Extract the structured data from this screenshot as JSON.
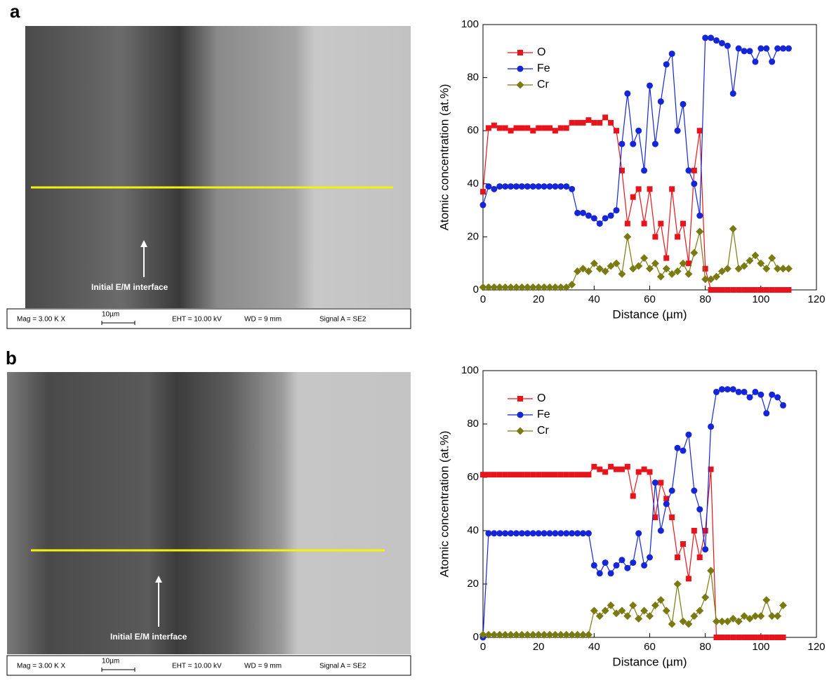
{
  "panels": [
    {
      "label": "a",
      "interface_label": "Initial E/M interface",
      "info": [
        "Mag =  3.00 K X",
        "10µm",
        "EHT = 10.00 kV",
        "WD =    9 mm",
        "Signal A = SE2"
      ]
    },
    {
      "label": "b",
      "interface_label": "Initial E/M interface",
      "info": [
        "Mag =  3.00 K X",
        "10µm",
        "EHT = 10.00 kV",
        "WD =    9 mm",
        "Signal A = SE2"
      ]
    }
  ],
  "chart_data": [
    {
      "type": "line",
      "x_label": "Distance (µm)",
      "y_label": "Atomic concentration (at.%)",
      "xlim": [
        0,
        120
      ],
      "ylim": [
        0,
        100
      ],
      "xticks": [
        0,
        20,
        40,
        60,
        80,
        100,
        120
      ],
      "yticks": [
        0,
        20,
        40,
        60,
        80,
        100
      ],
      "legend": "upper left",
      "x": [
        0,
        2,
        4,
        6,
        8,
        10,
        12,
        14,
        16,
        18,
        20,
        22,
        24,
        26,
        28,
        30,
        32,
        34,
        36,
        38,
        40,
        42,
        44,
        46,
        48,
        50,
        52,
        54,
        56,
        58,
        60,
        62,
        64,
        66,
        68,
        70,
        72,
        74,
        76,
        78,
        80,
        82,
        84,
        86,
        88,
        90,
        92,
        94,
        96,
        98,
        100,
        102,
        104,
        106,
        108,
        110
      ],
      "series": [
        {
          "name": "O",
          "color": "#e8141c",
          "marker": "square",
          "values": [
            37,
            61,
            62,
            61,
            61,
            60,
            61,
            61,
            61,
            60,
            61,
            61,
            61,
            60,
            61,
            61,
            63,
            63,
            63,
            64,
            63,
            63,
            65,
            63,
            60,
            45,
            25,
            35,
            38,
            25,
            38,
            20,
            25,
            12,
            38,
            20,
            25,
            10,
            45,
            60,
            8,
            0,
            0,
            0,
            0,
            0,
            0,
            0,
            0,
            0,
            0,
            0,
            0,
            0,
            0,
            0
          ]
        },
        {
          "name": "Fe",
          "color": "#1426d8",
          "marker": "circle",
          "values": [
            32,
            39,
            38,
            39,
            39,
            39,
            39,
            39,
            39,
            39,
            39,
            39,
            39,
            39,
            39,
            39,
            38,
            29,
            29,
            28,
            27,
            25,
            27,
            28,
            30,
            55,
            74,
            55,
            60,
            45,
            77,
            55,
            71,
            85,
            89,
            60,
            70,
            45,
            40,
            28,
            95,
            95,
            94,
            93,
            92,
            74,
            91,
            90,
            90,
            86,
            91,
            91,
            86,
            91,
            91,
            91
          ]
        },
        {
          "name": "Cr",
          "color": "#7a7a12",
          "marker": "diamond",
          "values": [
            1,
            1,
            1,
            1,
            1,
            1,
            1,
            1,
            1,
            1,
            1,
            1,
            1,
            1,
            1,
            1,
            2,
            7,
            8,
            7,
            10,
            8,
            7,
            9,
            10,
            6,
            20,
            8,
            9,
            12,
            8,
            10,
            5,
            8,
            6,
            7,
            10,
            6,
            14,
            22,
            4,
            4,
            5,
            7,
            8,
            23,
            8,
            9,
            11,
            13,
            10,
            8,
            12,
            8,
            8,
            8
          ]
        }
      ]
    },
    {
      "type": "line",
      "x_label": "Distance (µm)",
      "y_label": "Atomic concentration (at.%)",
      "xlim": [
        0,
        120
      ],
      "ylim": [
        0,
        100
      ],
      "xticks": [
        0,
        20,
        40,
        60,
        80,
        100,
        120
      ],
      "yticks": [
        0,
        20,
        40,
        60,
        80,
        100
      ],
      "legend": "upper left",
      "x": [
        0,
        2,
        4,
        6,
        8,
        10,
        12,
        14,
        16,
        18,
        20,
        22,
        24,
        26,
        28,
        30,
        32,
        34,
        36,
        38,
        40,
        42,
        44,
        46,
        48,
        50,
        52,
        54,
        56,
        58,
        60,
        62,
        64,
        66,
        68,
        70,
        72,
        74,
        76,
        78,
        80,
        82,
        84,
        86,
        88,
        90,
        92,
        94,
        96,
        98,
        100,
        102,
        104,
        106,
        108
      ],
      "series": [
        {
          "name": "O",
          "color": "#e8141c",
          "marker": "square",
          "values": [
            61,
            61,
            61,
            61,
            61,
            61,
            61,
            61,
            61,
            61,
            61,
            61,
            61,
            61,
            61,
            61,
            61,
            61,
            61,
            61,
            64,
            63,
            62,
            64,
            63,
            63,
            64,
            53,
            62,
            63,
            62,
            45,
            58,
            52,
            45,
            30,
            35,
            22,
            40,
            30,
            40,
            63,
            0,
            0,
            0,
            0,
            0,
            0,
            0,
            0,
            0,
            0,
            0,
            0,
            0
          ]
        },
        {
          "name": "Fe",
          "color": "#1426d8",
          "marker": "circle",
          "values": [
            0,
            39,
            39,
            39,
            39,
            39,
            39,
            39,
            39,
            39,
            39,
            39,
            39,
            39,
            39,
            39,
            39,
            39,
            39,
            39,
            27,
            24,
            28,
            24,
            27,
            29,
            26,
            28,
            39,
            27,
            30,
            58,
            40,
            50,
            55,
            71,
            70,
            76,
            55,
            48,
            33,
            79,
            92,
            93,
            93,
            93,
            92,
            92,
            90,
            92,
            91,
            84,
            91,
            90,
            87
          ]
        },
        {
          "name": "Cr",
          "color": "#7a7a12",
          "marker": "diamond",
          "values": [
            1,
            1,
            1,
            1,
            1,
            1,
            1,
            1,
            1,
            1,
            1,
            1,
            1,
            1,
            1,
            1,
            1,
            1,
            1,
            1,
            10,
            8,
            10,
            12,
            9,
            10,
            8,
            12,
            7,
            10,
            8,
            12,
            14,
            10,
            5,
            20,
            6,
            5,
            8,
            10,
            15,
            25,
            6,
            6,
            6,
            7,
            6,
            8,
            7,
            8,
            8,
            14,
            8,
            8,
            12
          ]
        }
      ]
    }
  ]
}
